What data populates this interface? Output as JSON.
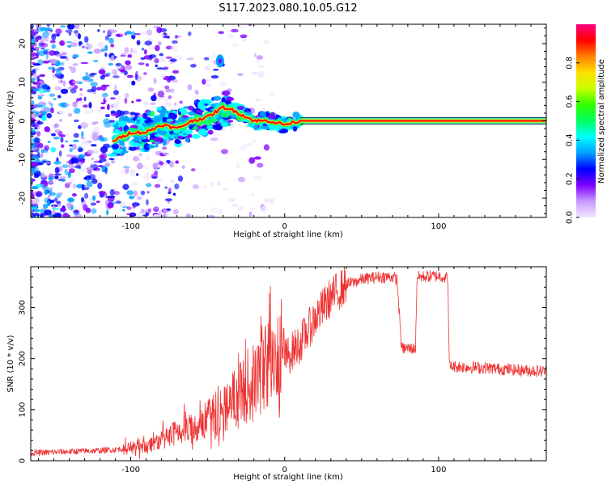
{
  "title": "S117.2023.080.10.05.G12",
  "chart_data": [
    {
      "type": "heatmap",
      "xlabel": "Height of straight line (km)",
      "ylabel": "Frequency (Hz)",
      "xlim": [
        -165,
        170
      ],
      "ylim": [
        -25,
        25
      ],
      "x_ticks": [
        -100,
        0,
        100
      ],
      "y_ticks": [
        -20,
        -10,
        0,
        10,
        20
      ],
      "colorbar": {
        "label": "Normalized spectral amplitude",
        "range": [
          0,
          1
        ],
        "ticks": [
          "0.0",
          "0.2",
          "0.4",
          "0.6",
          "0.8"
        ],
        "colors": [
          "#f2e6ff",
          "#c79bff",
          "#7f00ff",
          "#0000ff",
          "#00a0ff",
          "#00ffff",
          "#00ff60",
          "#30ff00",
          "#c8ff00",
          "#ffe000",
          "#ff8000",
          "#ff0000",
          "#ff0080"
        ]
      },
      "ridge": [
        {
          "x": -110,
          "y": -5
        },
        {
          "x": -100,
          "y": -3
        },
        {
          "x": -90,
          "y": -3
        },
        {
          "x": -80,
          "y": -1
        },
        {
          "x": -70,
          "y": -2
        },
        {
          "x": -60,
          "y": 0
        },
        {
          "x": -50,
          "y": 1
        },
        {
          "x": -40,
          "y": 3.5
        },
        {
          "x": -35,
          "y": 3
        },
        {
          "x": -30,
          "y": 2
        },
        {
          "x": -25,
          "y": 1
        },
        {
          "x": -20,
          "y": 0
        },
        {
          "x": -10,
          "y": 0
        },
        {
          "x": 0,
          "y": -1
        },
        {
          "x": 10,
          "y": 0
        },
        {
          "x": 170,
          "y": 0
        }
      ]
    },
    {
      "type": "line",
      "xlabel": "Height of straight line (km)",
      "ylabel": "SNR (10 * v/v)",
      "xlim": [
        -165,
        170
      ],
      "ylim": [
        0,
        380
      ],
      "x_ticks": [
        -100,
        0,
        100
      ],
      "y_ticks": [
        0,
        100,
        200,
        300
      ],
      "color": "#ee3333",
      "series": [
        {
          "values": [
            {
              "x": -165,
              "y": 15
            },
            {
              "x": -140,
              "y": 18
            },
            {
              "x": -120,
              "y": 20
            },
            {
              "x": -110,
              "y": 22
            },
            {
              "x": -100,
              "y": 25
            },
            {
              "x": -90,
              "y": 30
            },
            {
              "x": -80,
              "y": 40
            },
            {
              "x": -70,
              "y": 55
            },
            {
              "x": -60,
              "y": 65
            },
            {
              "x": -50,
              "y": 80
            },
            {
              "x": -40,
              "y": 100
            },
            {
              "x": -30,
              "y": 130
            },
            {
              "x": -20,
              "y": 150
            },
            {
              "x": -15,
              "y": 180
            },
            {
              "x": -10,
              "y": 190
            },
            {
              "x": -5,
              "y": 185
            },
            {
              "x": 0,
              "y": 200
            },
            {
              "x": 10,
              "y": 230
            },
            {
              "x": 20,
              "y": 280
            },
            {
              "x": 30,
              "y": 320
            },
            {
              "x": 40,
              "y": 345
            },
            {
              "x": 50,
              "y": 355
            },
            {
              "x": 60,
              "y": 360
            },
            {
              "x": 70,
              "y": 360
            },
            {
              "x": 73,
              "y": 355
            },
            {
              "x": 74,
              "y": 310
            },
            {
              "x": 76,
              "y": 220
            },
            {
              "x": 85,
              "y": 220
            },
            {
              "x": 86,
              "y": 360
            },
            {
              "x": 100,
              "y": 362
            },
            {
              "x": 106,
              "y": 358
            },
            {
              "x": 107,
              "y": 185
            },
            {
              "x": 130,
              "y": 182
            },
            {
              "x": 150,
              "y": 178
            },
            {
              "x": 170,
              "y": 175
            }
          ]
        }
      ]
    }
  ]
}
